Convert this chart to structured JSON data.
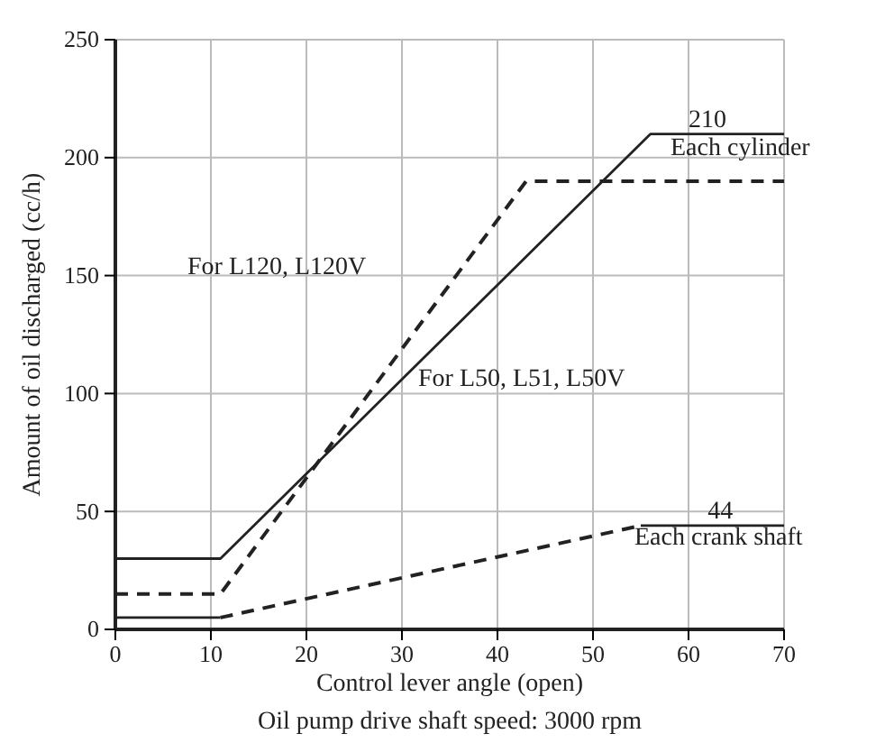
{
  "chart_data": {
    "type": "line",
    "xlabel": "Control lever angle (open)",
    "ylabel": "Amount of oil discharged (cc/h)",
    "xlim": [
      0,
      70
    ],
    "ylim": [
      0,
      250
    ],
    "xticks": [
      0,
      10,
      20,
      30,
      40,
      50,
      60,
      70
    ],
    "yticks": [
      0,
      50,
      100,
      150,
      200,
      250
    ],
    "grid": true,
    "series": [
      {
        "name": "For L50, L51, L50V",
        "color": "#222222",
        "line_style": "solid",
        "x": [
          0,
          11,
          56,
          70
        ],
        "values": [
          30,
          30,
          210,
          210
        ]
      },
      {
        "name": "For L120, L120V",
        "color": "#222222",
        "line_style": "dashed",
        "x": [
          0,
          11,
          43,
          70
        ],
        "values": [
          15,
          15,
          190,
          190
        ]
      },
      {
        "color": "#222222",
        "line_style": "solid",
        "x": [
          0,
          11
        ],
        "values": [
          5,
          5
        ]
      },
      {
        "color": "#222222",
        "line_style": "dashed",
        "x": [
          11,
          55
        ],
        "values": [
          5,
          44
        ]
      },
      {
        "color": "#222222",
        "line_style": "solid",
        "x": [
          55,
          70
        ],
        "values": [
          44,
          44
        ]
      }
    ],
    "annotations": [
      {
        "text": "210",
        "x": 60,
        "y": 210
      },
      "Each cylinder",
      {
        "text": "44",
        "x": 62,
        "y": 44
      },
      "Each crank shaft",
      "Oil pump drive shaft speed: 3000 rpm"
    ]
  }
}
